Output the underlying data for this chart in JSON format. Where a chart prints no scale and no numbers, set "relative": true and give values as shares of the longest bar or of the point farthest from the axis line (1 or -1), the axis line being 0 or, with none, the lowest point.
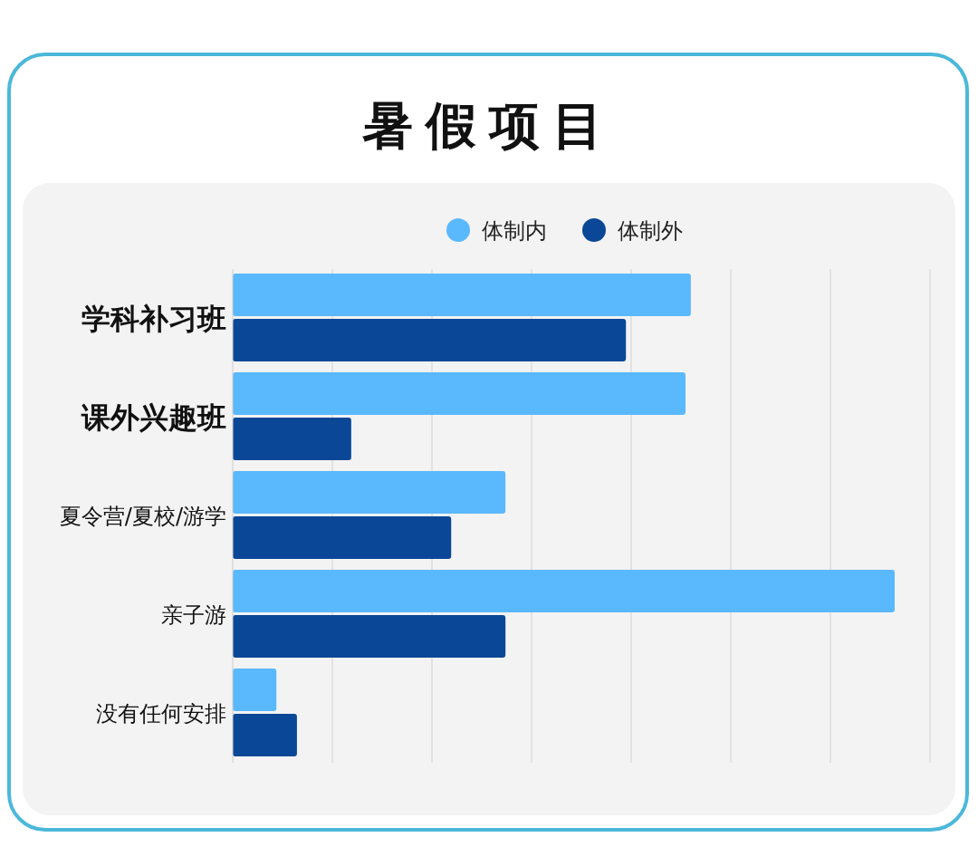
{
  "chart_data": {
    "type": "bar",
    "orientation": "horizontal",
    "relative": true,
    "title": "暑假项目",
    "categories": [
      "学科补习班",
      "课外兴趣班",
      "夏令营/夏校/游学",
      "亲子游",
      "没有任何安排"
    ],
    "series": [
      {
        "name": "体制内",
        "color": "#5ab8fd",
        "values": [
          0.692,
          0.684,
          0.412,
          1,
          0.066
        ]
      },
      {
        "name": "体制外",
        "color": "#0a4797",
        "values": [
          0.594,
          0.179,
          0.33,
          0.412,
          0.097
        ]
      }
    ],
    "grid": "x",
    "legend": "top",
    "tick_labels": "y"
  }
}
